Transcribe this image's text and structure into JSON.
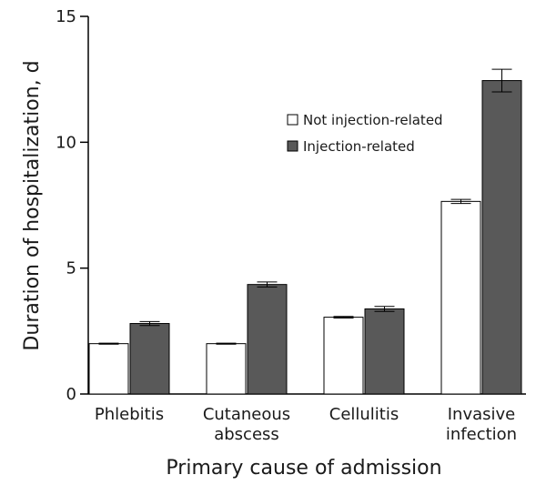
{
  "chart_data": {
    "type": "bar",
    "title": "",
    "xlabel": "Primary cause of admission",
    "ylabel": "Duration of hospitalization, d",
    "ylim": [
      0,
      15
    ],
    "yticks": [
      "0",
      "5",
      "10",
      "15"
    ],
    "categories": [
      [
        "Phlebitis"
      ],
      [
        "Cutaneous",
        "abscess"
      ],
      [
        "Cellulitis"
      ],
      [
        "Invasive",
        "infection"
      ]
    ],
    "series": [
      {
        "name": "Not injection-related",
        "color": "#ffffff",
        "values": [
          2.0,
          2.0,
          3.05,
          7.65
        ],
        "error": [
          0.02,
          0.02,
          0.03,
          0.08
        ]
      },
      {
        "name": "Injection-related",
        "color": "#595959",
        "values": [
          2.8,
          4.35,
          3.38,
          12.45
        ],
        "error": [
          0.08,
          0.1,
          0.1,
          0.45
        ]
      }
    ],
    "legend_position": "upper-right",
    "error_bars": true
  }
}
